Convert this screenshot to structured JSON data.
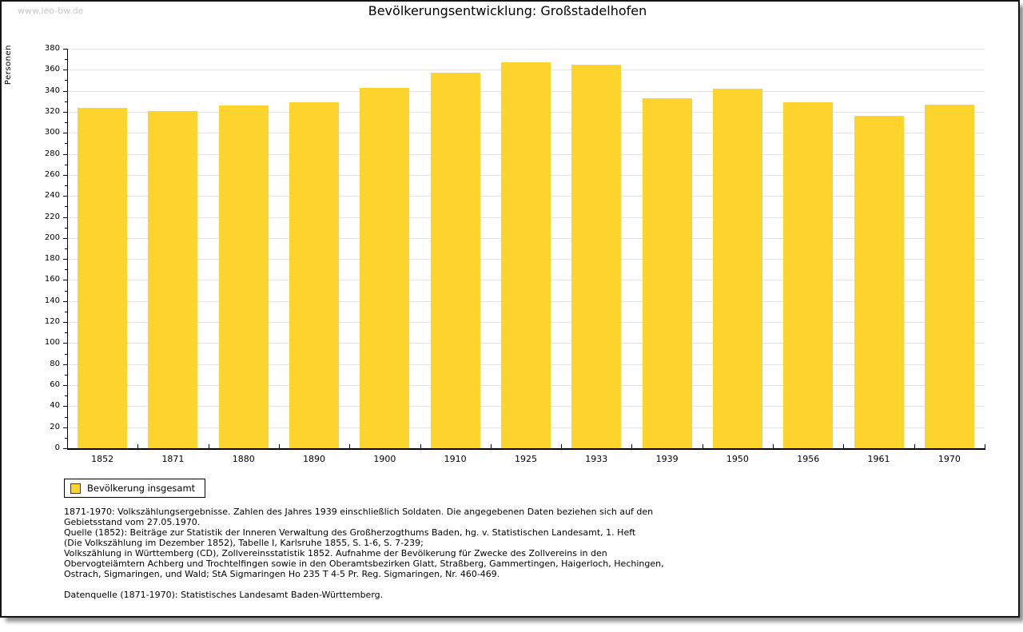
{
  "page": {
    "watermark": "www.leo-bw.de",
    "title": "Bevölkerungsentwicklung: Großstadelhofen"
  },
  "chart_data": {
    "type": "bar",
    "title": "Bevölkerungsentwicklung: Großstadelhofen",
    "xlabel": "",
    "ylabel": "Personen",
    "ylim": [
      0,
      380
    ],
    "y_tick_step": 20,
    "y_minor_tick_step": 10,
    "grid": true,
    "legend_position": "bottom-left",
    "bar_color": "#fdd32e",
    "grid_color": "#e3e3e3",
    "categories": [
      "1852",
      "1871",
      "1880",
      "1890",
      "1900",
      "1910",
      "1925",
      "1933",
      "1939",
      "1950",
      "1956",
      "1961",
      "1970"
    ],
    "series": [
      {
        "name": "Bevölkerung insgesamt",
        "values": [
          324,
          321,
          326,
          329,
          343,
          357,
          367,
          365,
          333,
          342,
          329,
          316,
          327
        ]
      }
    ]
  },
  "footer": {
    "lines": [
      "1871-1970: Volkszählungsergebnisse. Zahlen des Jahres 1939 einschließlich Soldaten. Die angegebenen Daten beziehen sich auf den",
      "Gebietsstand vom 27.05.1970.",
      "Quelle (1852): Beiträge zur Statistik der Inneren Verwaltung des Großherzogthums Baden, hg. v. Statistischen Landesamt, 1. Heft",
      "(Die Volkszählung im Dezember 1852), Tabelle I, Karlsruhe 1855, S. 1-6, S. 7-239;",
      "Volkszählung in Württemberg (CD), Zollvereinsstatistik 1852. Aufnahme der Bevölkerung für Zwecke des Zollvereins in den",
      "Obervogteiämtern Achberg und Trochtelfingen sowie in den Oberamtsbezirken Glatt, Straßberg, Gammertingen, Haigerloch, Hechingen,",
      "Ostrach, Sigmaringen, und Wald; StA Sigmaringen Ho 235 T 4-5 Pr. Reg. Sigmaringen, Nr. 460-469.",
      "",
      "Datenquelle (1871-1970): Statistisches Landesamt Baden-Württemberg."
    ]
  }
}
